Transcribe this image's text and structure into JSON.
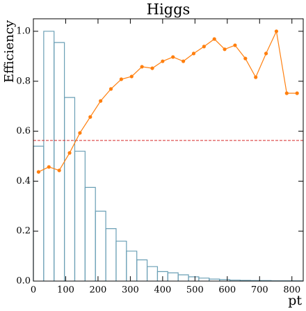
{
  "chart_data": {
    "type": "line",
    "title": "Higgs",
    "xlabel": "pt",
    "ylabel": "Efficiency",
    "x": [
      16,
      48,
      80,
      112,
      144,
      176,
      208,
      240,
      272,
      304,
      336,
      368,
      400,
      432,
      464,
      496,
      528,
      560,
      592,
      624,
      656,
      688,
      720,
      752,
      784,
      816
    ],
    "series": [
      {
        "color": "#ff7f0e",
        "values": [
          0.437,
          0.457,
          0.443,
          0.513,
          0.593,
          0.657,
          0.721,
          0.769,
          0.808,
          0.819,
          0.858,
          0.852,
          0.88,
          0.897,
          0.88,
          0.911,
          0.939,
          0.969,
          0.928,
          0.944,
          0.891,
          0.816,
          0.911,
          1.0,
          0.752,
          0.752
        ]
      }
    ],
    "histogram": {
      "color": "#6a9fb5",
      "bins": [
        0,
        32,
        64,
        96,
        128,
        160,
        192,
        224,
        256,
        288,
        320,
        352,
        384,
        416,
        448,
        480,
        512,
        544,
        576,
        608,
        640,
        672,
        704,
        736,
        768,
        800,
        832
      ],
      "values": [
        0.54,
        1.0,
        0.955,
        0.735,
        0.52,
        0.375,
        0.28,
        0.21,
        0.16,
        0.12,
        0.085,
        0.058,
        0.038,
        0.033,
        0.025,
        0.017,
        0.012,
        0.008,
        0.006,
        0.004,
        0.003,
        0.002,
        0.002,
        0.001,
        0.001,
        0.001
      ]
    },
    "hline": {
      "value": 0.563,
      "color": "#d62728"
    },
    "xlim": [
      0,
      835
    ],
    "ylim": [
      0,
      1.05
    ],
    "xticks": [
      0,
      100,
      200,
      300,
      400,
      500,
      600,
      700,
      800
    ],
    "yticks": [
      {
        "value": 0,
        "label": "0.0"
      },
      {
        "value": 0.2,
        "label": "0.2"
      },
      {
        "value": 0.4,
        "label": "0.4"
      },
      {
        "value": 0.6,
        "label": "0.6"
      },
      {
        "value": 0.8,
        "label": "0.8"
      },
      {
        "value": 1.0,
        "label": "1.0"
      }
    ]
  }
}
